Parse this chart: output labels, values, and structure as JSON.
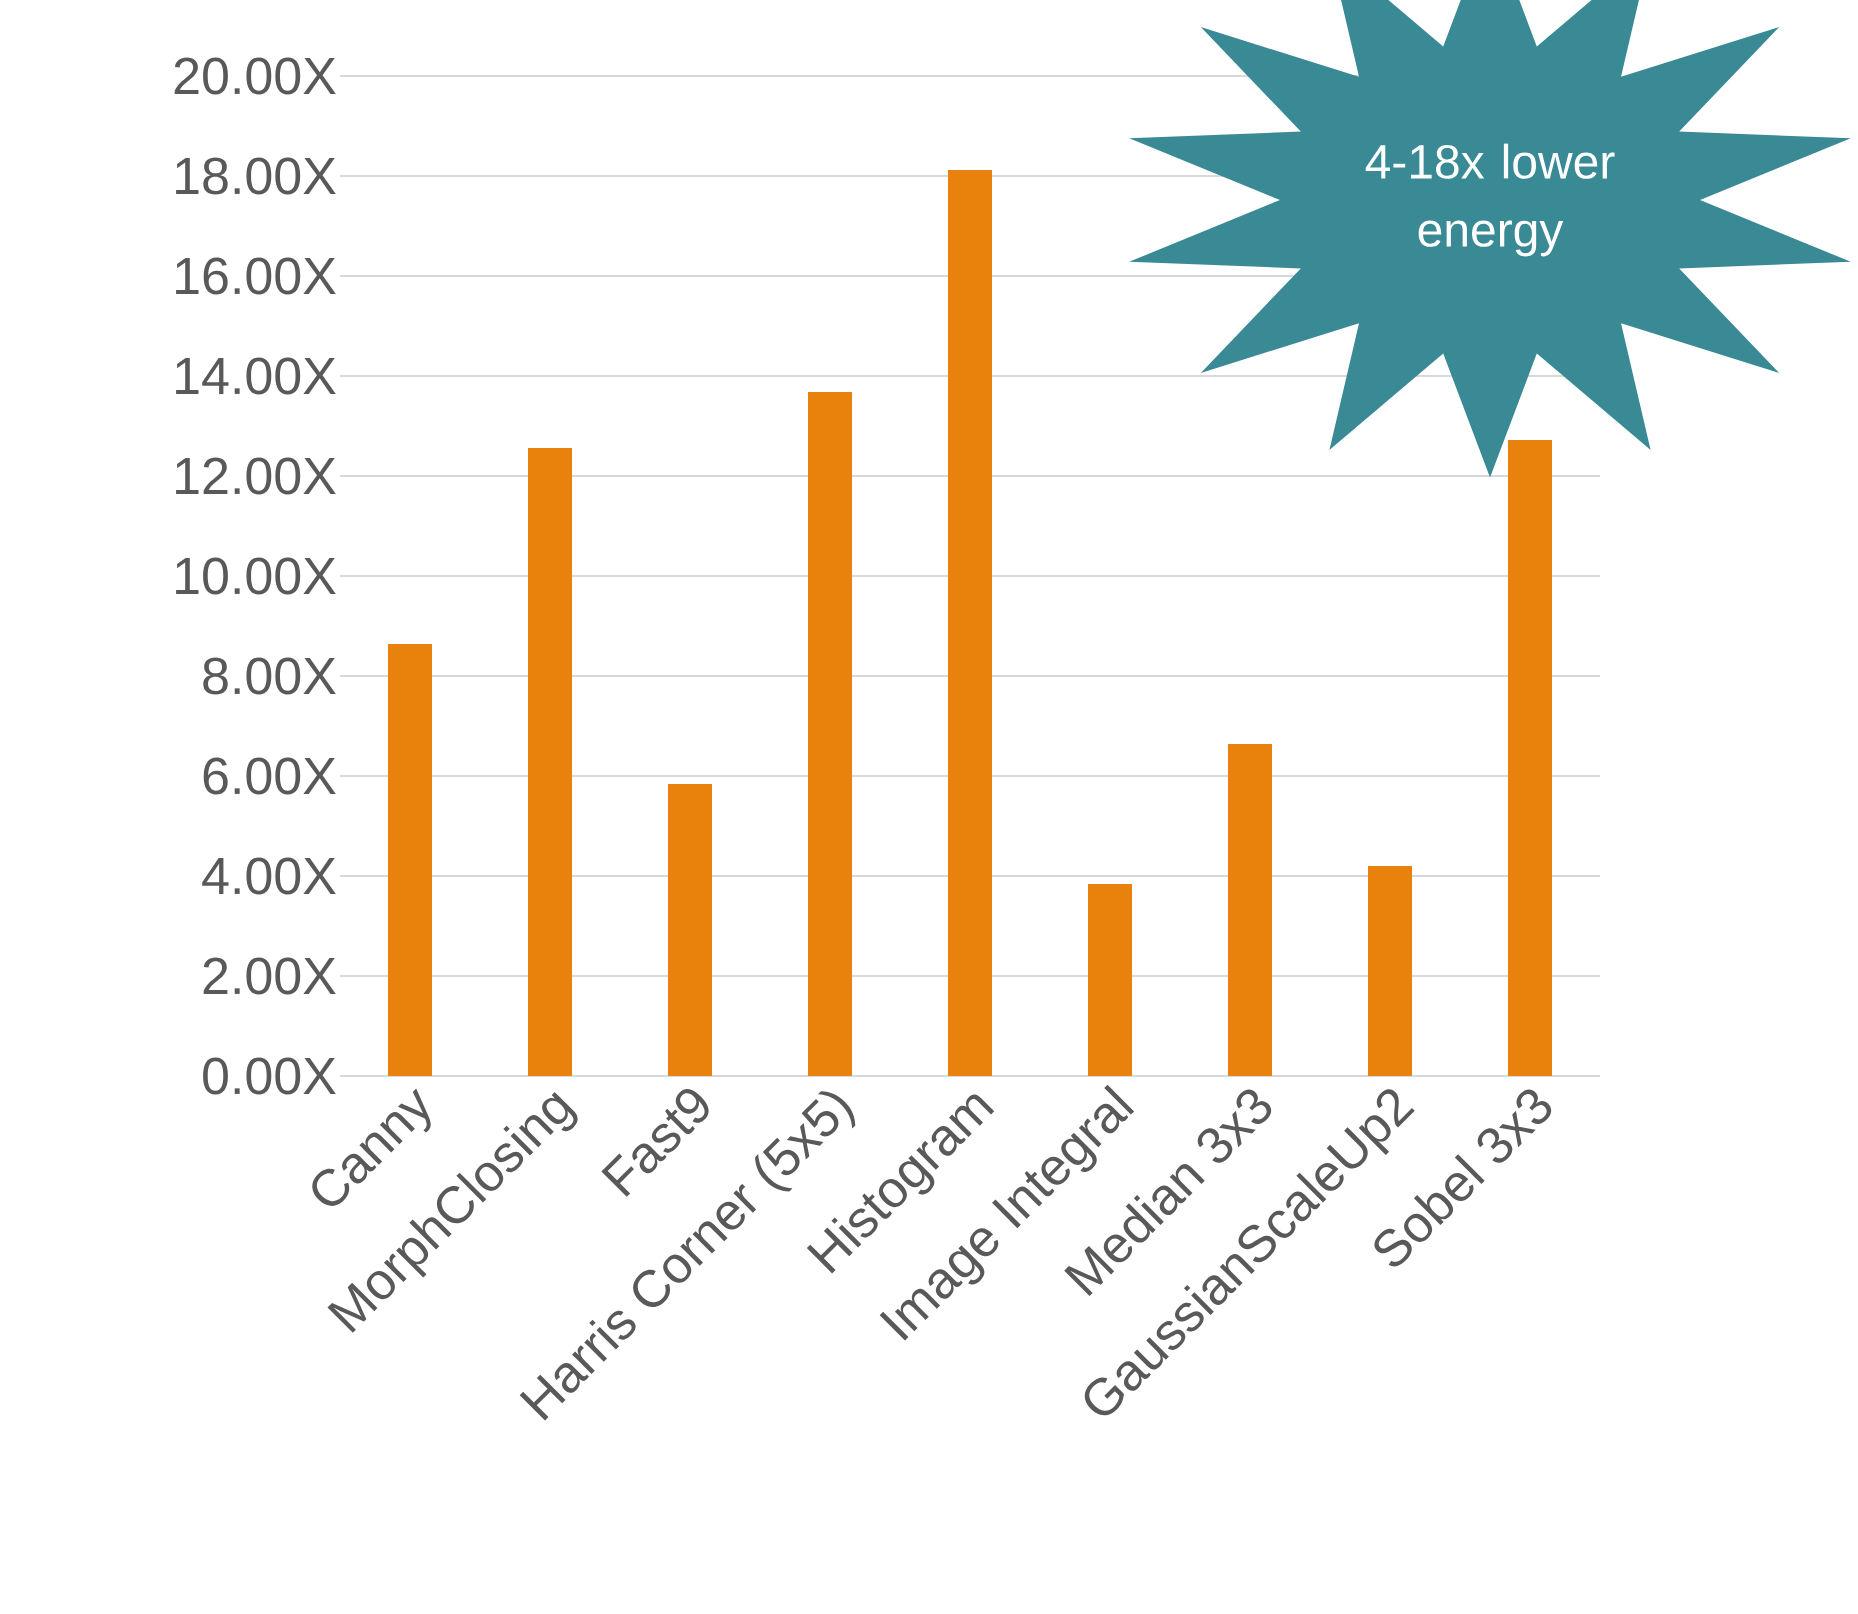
{
  "chart_data": {
    "type": "bar",
    "categories": [
      "Canny",
      "MorphClosing",
      "Fast9",
      "Harris Corner (5x5)",
      "Histogram",
      "Image Integral",
      "Median 3x3",
      "GaussianScaleUp2",
      "Sobel 3x3"
    ],
    "values": [
      8.64,
      12.56,
      5.84,
      13.68,
      18.12,
      3.84,
      6.64,
      4.2,
      12.72
    ],
    "color": "#e8820c",
    "ylim": [
      0,
      20
    ],
    "yticks": [
      {
        "value": 0,
        "label": "0.00X"
      },
      {
        "value": 2,
        "label": "2.00X"
      },
      {
        "value": 4,
        "label": "4.00X"
      },
      {
        "value": 6,
        "label": "6.00X"
      },
      {
        "value": 8,
        "label": "8.00X"
      },
      {
        "value": 10,
        "label": "10.00X"
      },
      {
        "value": 12,
        "label": "12.00X"
      },
      {
        "value": 14,
        "label": "14.00X"
      },
      {
        "value": 16,
        "label": "16.00X"
      },
      {
        "value": 18,
        "label": "18.00X"
      },
      {
        "value": 20,
        "label": "20.00X"
      }
    ],
    "grid": "y",
    "annotations": [
      "4-18x lower energy"
    ]
  }
}
